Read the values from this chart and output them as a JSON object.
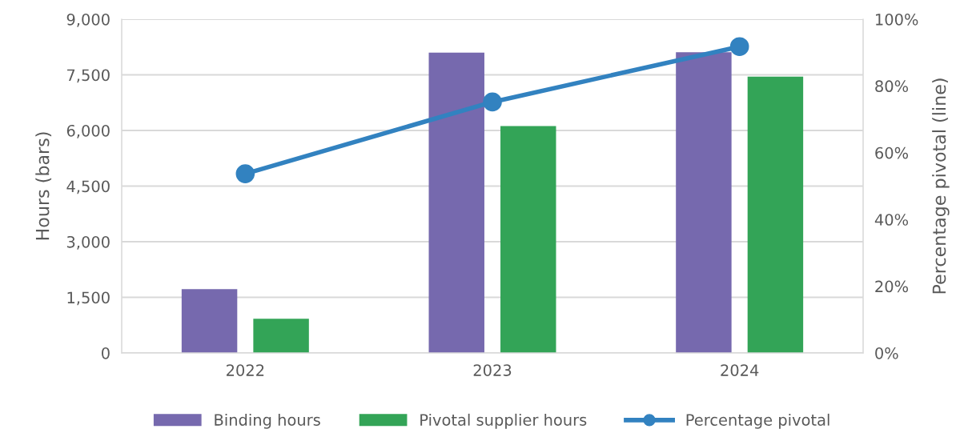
{
  "chart_data": {
    "type": "bar",
    "categories": [
      "2022",
      "2023",
      "2024"
    ],
    "ylabel": "Hours (bars)",
    "y2label": "Percentage pivotal (line)",
    "series": [
      {
        "name": "Binding hours",
        "color": "#7669ae",
        "values": [
          1720,
          8100,
          8110
        ]
      },
      {
        "name": "Pivotal supplier hours",
        "color": "#33a457",
        "values": [
          920,
          6120,
          7450
        ]
      },
      {
        "name": "Percentage pivotal",
        "type": "line",
        "axis": "y2",
        "color": "#3282c0",
        "marker": "circle",
        "values": [
          53.7,
          75.2,
          91.8
        ]
      }
    ],
    "ylim": [
      0,
      9000
    ],
    "yticks": [
      {
        "value": 0,
        "label": "0"
      },
      {
        "value": 1500,
        "label": "1,500"
      },
      {
        "value": 3000,
        "label": "3,000"
      },
      {
        "value": 4500,
        "label": "4,500"
      },
      {
        "value": 6000,
        "label": "6,000"
      },
      {
        "value": 7500,
        "label": "7,500"
      },
      {
        "value": 9000,
        "label": "9,000"
      }
    ],
    "y2lim": [
      0,
      100
    ],
    "y2ticks": [
      {
        "value": 0,
        "label": "0%"
      },
      {
        "value": 20,
        "label": "20%"
      },
      {
        "value": 40,
        "label": "40%"
      },
      {
        "value": 60,
        "label": "60%"
      },
      {
        "value": 80,
        "label": "80%"
      },
      {
        "value": 100,
        "label": "100%"
      }
    ],
    "grid": "y",
    "legend": "bottom"
  }
}
